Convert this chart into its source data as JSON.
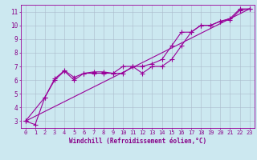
{
  "xlabel": "Windchill (Refroidissement éolien,°C)",
  "bg_color": "#cce8f0",
  "line_color": "#990099",
  "grid_color": "#aabbcc",
  "text_color": "#880088",
  "xlim": [
    -0.5,
    23.5
  ],
  "ylim": [
    2.5,
    11.5
  ],
  "xticks": [
    0,
    1,
    2,
    3,
    4,
    5,
    6,
    7,
    8,
    9,
    10,
    11,
    12,
    13,
    14,
    15,
    16,
    17,
    18,
    19,
    20,
    21,
    22,
    23
  ],
  "yticks": [
    3,
    4,
    5,
    6,
    7,
    8,
    9,
    10,
    11
  ],
  "line1_x": [
    0,
    1,
    2,
    3,
    4,
    5,
    6,
    7,
    8,
    9,
    10,
    11,
    12,
    13,
    14,
    15,
    16,
    17,
    18,
    19,
    20,
    21,
    22,
    23
  ],
  "line1_y": [
    3.0,
    2.75,
    4.75,
    6.0,
    6.65,
    6.0,
    6.5,
    6.5,
    6.5,
    6.5,
    7.0,
    7.0,
    6.5,
    7.0,
    7.0,
    7.5,
    8.5,
    9.5,
    10.0,
    10.0,
    10.3,
    10.4,
    11.1,
    11.2
  ],
  "line2_x": [
    0,
    2,
    3,
    4,
    5,
    6,
    7,
    8,
    9,
    10,
    11,
    12,
    13,
    14,
    15,
    16,
    17,
    18,
    19,
    20,
    21,
    22,
    23
  ],
  "line2_y": [
    3.0,
    4.75,
    6.1,
    6.7,
    6.2,
    6.5,
    6.6,
    6.6,
    6.5,
    6.5,
    7.0,
    7.0,
    7.2,
    7.5,
    8.5,
    9.5,
    9.5,
    10.0,
    10.0,
    10.3,
    10.5,
    11.2,
    11.2
  ],
  "line3_x": [
    0,
    23
  ],
  "line3_y": [
    3.0,
    11.2
  ],
  "marker_size": 2.0,
  "line_width": 0.8,
  "tick_fontsize": 5.0,
  "xlabel_fontsize": 5.5
}
